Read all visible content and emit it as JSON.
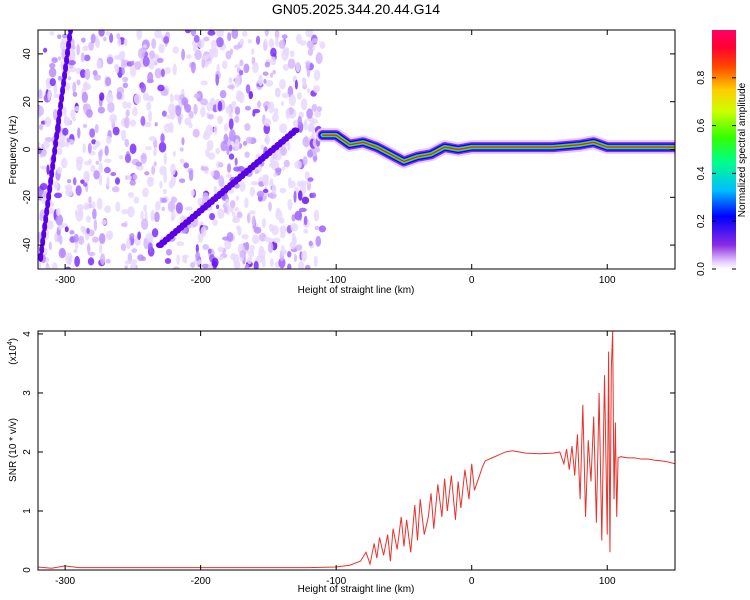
{
  "title": "GN05.2025.344.20.44.G14",
  "chart_data": [
    {
      "type": "heatmap",
      "name": "spectrogram",
      "xlabel": "Height of straight line (km)",
      "ylabel": "Frequency (Hz)",
      "xlim": [
        -320,
        150
      ],
      "ylim": [
        -50,
        50
      ],
      "xticks": [
        -300,
        -200,
        -100,
        0,
        100
      ],
      "xtick_labels": [
        "-300",
        "-200",
        "-100",
        "0",
        "100"
      ],
      "yticks": [
        -40,
        -20,
        0,
        20,
        40
      ],
      "ytick_labels": [
        "-40",
        "-20",
        "0",
        "20",
        "40"
      ],
      "ridge": {
        "x": [
          -110,
          -100,
          -90,
          -80,
          -70,
          -60,
          -50,
          -40,
          -30,
          -20,
          -10,
          0,
          10,
          20,
          40,
          60,
          80,
          90,
          100,
          110,
          150
        ],
        "y": [
          6,
          6,
          2,
          3,
          1,
          -2,
          -5,
          -3,
          -2,
          1,
          0,
          1,
          1,
          1,
          1,
          1,
          2,
          3,
          1,
          1,
          1
        ]
      },
      "diagonal_band": {
        "x_start": -230,
        "y_start": -40,
        "x_end": -130,
        "y_end": 8
      },
      "colorbar": {
        "label": "Normalized spectral amplitude",
        "range": [
          0,
          1
        ],
        "ticks": [
          0.0,
          0.2,
          0.4,
          0.6,
          0.8
        ],
        "tick_labels": [
          "0.0",
          "0.2",
          "0.4",
          "0.6",
          "0.8"
        ]
      }
    },
    {
      "type": "line",
      "name": "snr",
      "xlabel": "Height of straight line (km)",
      "ylabel": "SNR (10 * v/v)",
      "multiplier": "(x10",
      "multiplier_exp": "4",
      "multiplier_close": ")",
      "xlim": [
        -320,
        150
      ],
      "ylim": [
        0,
        4.05
      ],
      "xticks": [
        -300,
        -200,
        -100,
        0,
        100
      ],
      "xtick_labels": [
        "-300",
        "-200",
        "-100",
        "0",
        "100"
      ],
      "yticks": [
        0,
        1,
        2,
        3,
        4
      ],
      "ytick_labels": [
        "0",
        "1",
        "2",
        "3",
        "4"
      ],
      "color": "#e8322c",
      "series": [
        {
          "name": "SNR",
          "x": [
            -320,
            -310,
            -300,
            -290,
            -280,
            -200,
            -120,
            -100,
            -90,
            -82,
            -78,
            -75,
            -72,
            -70,
            -68,
            -65,
            -62,
            -60,
            -58,
            -55,
            -52,
            -50,
            -48,
            -45,
            -42,
            -40,
            -38,
            -35,
            -32,
            -30,
            -28,
            -25,
            -22,
            -20,
            -18,
            -15,
            -12,
            -10,
            -8,
            -5,
            -2,
            0,
            2,
            5,
            8,
            10,
            15,
            20,
            25,
            30,
            35,
            40,
            50,
            60,
            65,
            68,
            70,
            72,
            74,
            76,
            78,
            80,
            82,
            84,
            86,
            88,
            90,
            92,
            94,
            96,
            98,
            100,
            101,
            102,
            103,
            104,
            105,
            106,
            107,
            108,
            110,
            115,
            120,
            125,
            130,
            135,
            140,
            145,
            150
          ],
          "y": [
            0.05,
            0.03,
            0.07,
            0.04,
            0.04,
            0.04,
            0.04,
            0.05,
            0.08,
            0.15,
            0.3,
            0.1,
            0.45,
            0.2,
            0.55,
            0.25,
            0.6,
            0.15,
            0.7,
            0.35,
            0.9,
            0.4,
            0.85,
            0.3,
            1.1,
            0.5,
            1.2,
            0.6,
            0.9,
            1.3,
            0.7,
            1.45,
            0.9,
            1.55,
            1.0,
            1.6,
            0.85,
            1.5,
            1.05,
            1.7,
            1.2,
            1.8,
            1.35,
            1.55,
            1.75,
            1.85,
            1.9,
            1.95,
            2.0,
            2.02,
            2.0,
            1.98,
            1.97,
            1.98,
            2.0,
            1.8,
            2.05,
            1.7,
            2.1,
            1.6,
            2.3,
            1.2,
            2.8,
            0.9,
            2.2,
            1.5,
            2.6,
            0.8,
            3.0,
            0.5,
            3.3,
            0.6,
            3.7,
            0.3,
            3.4,
            4.05,
            1.2,
            2.5,
            0.9,
            1.9,
            1.92,
            1.9,
            1.9,
            1.88,
            1.88,
            1.86,
            1.85,
            1.83,
            1.8
          ]
        }
      ]
    }
  ]
}
